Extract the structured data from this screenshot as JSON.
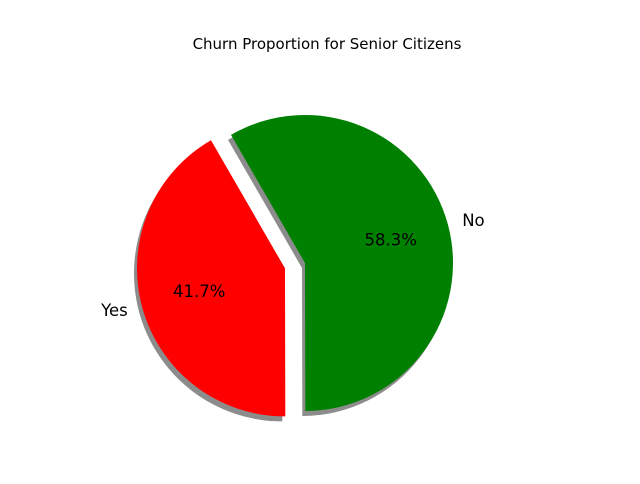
{
  "chart_data": {
    "type": "pie",
    "title": "Churn Proportion for Senior Citizens",
    "slices": [
      {
        "label": "Yes",
        "value": 41.7,
        "pct_text": "41.7%",
        "color": "#ff0000",
        "exploded": true
      },
      {
        "label": "No",
        "value": 58.3,
        "pct_text": "58.3%",
        "color": "#008000",
        "exploded": false
      }
    ],
    "start_angle_deg": 120,
    "shadow": true,
    "legend": "none"
  }
}
